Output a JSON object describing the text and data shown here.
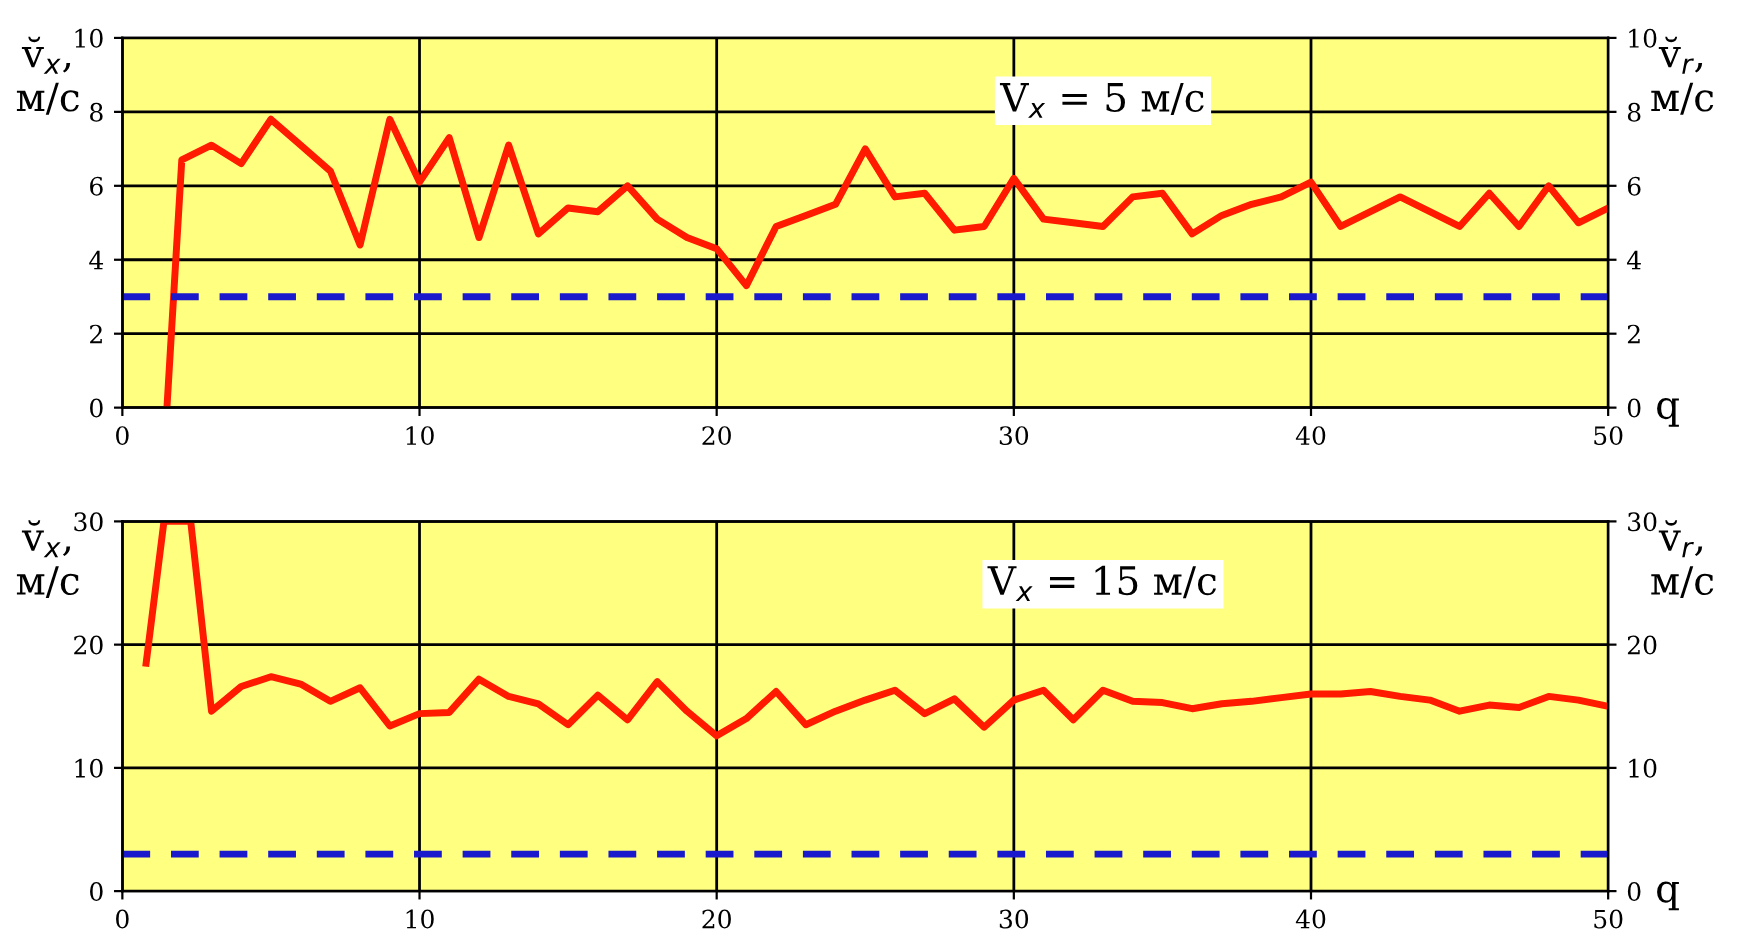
{
  "chart_data": [
    {
      "type": "line",
      "xlabel": "q",
      "ylabel": "v̆$_{х}$,\nм/с",
      "y2label": "v̆$_{r}$,\nм/с",
      "xlim": [
        0,
        50
      ],
      "xticks": [
        0,
        10,
        20,
        30,
        40,
        50
      ],
      "ylim": [
        0,
        10
      ],
      "yticks": [
        0,
        2,
        4,
        6,
        8,
        10
      ],
      "y2lim": [
        0,
        10
      ],
      "y2ticks": [
        0,
        2,
        4,
        6,
        8,
        10
      ],
      "grid": true,
      "marker": "none",
      "line_style": "solid",
      "annotations": [
        "V$_{х}$ = 5 м/с"
      ],
      "ref_lines": [
        {
          "axis": "y",
          "value": 3,
          "color": "#1a1acc",
          "line_style": "dashed"
        }
      ],
      "series": [
        {
          "color": "#ff1a00",
          "x": [
            1.5,
            2,
            3,
            4,
            5,
            6,
            7,
            8,
            9,
            10,
            11,
            12,
            13,
            14,
            15,
            16,
            17,
            18,
            19,
            20,
            21,
            22,
            23,
            24,
            25,
            26,
            27,
            28,
            29,
            30,
            31,
            32,
            33,
            34,
            35,
            36,
            37,
            38,
            39,
            40,
            41,
            42,
            43,
            44,
            45,
            46,
            47,
            48,
            49,
            50
          ],
          "values": [
            0,
            6.7,
            7.1,
            6.6,
            7.8,
            7.1,
            6.4,
            4.4,
            7.8,
            6.1,
            7.3,
            4.6,
            7.1,
            4.7,
            5.4,
            5.3,
            6.0,
            5.1,
            4.6,
            4.3,
            3.3,
            4.9,
            5.2,
            5.5,
            7.0,
            5.7,
            5.8,
            4.8,
            4.9,
            6.2,
            5.1,
            5.0,
            4.9,
            5.7,
            5.8,
            4.7,
            5.2,
            5.5,
            5.7,
            6.1,
            4.9,
            5.3,
            5.7,
            5.3,
            4.9,
            5.8,
            4.9,
            6.0,
            5.0,
            5.4
          ]
        }
      ]
    },
    {
      "type": "line",
      "xlabel": "q",
      "ylabel": "v̆$_{х}$,\nм/с",
      "y2label": "v̆$_{r}$,\nм/с",
      "xlim": [
        0,
        50
      ],
      "xticks": [
        0,
        10,
        20,
        30,
        40,
        50
      ],
      "ylim": [
        0,
        30
      ],
      "yticks": [
        0,
        10,
        20,
        30
      ],
      "y2lim": [
        0,
        30
      ],
      "y2ticks": [
        0,
        10,
        20,
        30
      ],
      "grid": true,
      "marker": "none",
      "line_style": "solid",
      "annotations": [
        "V$_{х}$ = 15 м/с"
      ],
      "ref_lines": [
        {
          "axis": "y",
          "value": 3,
          "color": "#1a1acc",
          "line_style": "dashed"
        }
      ],
      "series": [
        {
          "color": "#ff1a00",
          "x": [
            0.8,
            1.4,
            2.3,
            3,
            4,
            5,
            6,
            7,
            8,
            9,
            10,
            11,
            12,
            13,
            14,
            15,
            16,
            17,
            18,
            19,
            20,
            21,
            22,
            23,
            24,
            25,
            26,
            27,
            28,
            29,
            30,
            31,
            32,
            33,
            34,
            35,
            36,
            37,
            38,
            39,
            40,
            41,
            42,
            43,
            44,
            45,
            46,
            47,
            48,
            49,
            50
          ],
          "values": [
            18.5,
            30,
            30,
            14.6,
            16.6,
            17.4,
            16.8,
            15.4,
            16.5,
            13.4,
            14.4,
            14.5,
            17.2,
            15.8,
            15.2,
            13.5,
            15.9,
            13.9,
            17.0,
            14.6,
            12.6,
            14.0,
            16.2,
            13.5,
            14.6,
            15.5,
            16.3,
            14.4,
            15.6,
            13.3,
            15.5,
            16.3,
            13.9,
            16.3,
            15.4,
            15.3,
            14.8,
            15.2,
            15.4,
            15.7,
            16.0,
            16.0,
            16.2,
            15.8,
            15.5,
            14.6,
            15.1,
            14.9,
            15.8,
            15.5,
            15.0
          ]
        }
      ]
    }
  ]
}
